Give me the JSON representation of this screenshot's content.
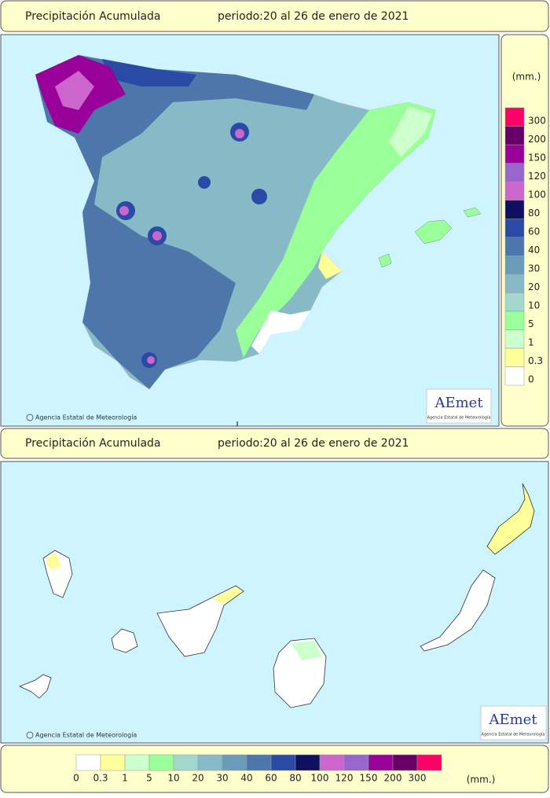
{
  "header": {
    "title": "Precipitación Acumulada",
    "period": "periodo:20 al 26 de enero de 2021"
  },
  "legend": {
    "unit": "(mm.)",
    "items": [
      {
        "label": "0",
        "color": "#ffffff"
      },
      {
        "label": "0.3",
        "color": "#ffff99"
      },
      {
        "label": "1",
        "color": "#ccffcc"
      },
      {
        "label": "5",
        "color": "#99ff99"
      },
      {
        "label": "10",
        "color": "#a3d6cc"
      },
      {
        "label": "20",
        "color": "#88b9c6"
      },
      {
        "label": "30",
        "color": "#6a9bb9"
      },
      {
        "label": "40",
        "color": "#4d76aa"
      },
      {
        "label": "60",
        "color": "#2a4aa5"
      },
      {
        "label": "80",
        "color": "#101060"
      },
      {
        "label": "100",
        "color": "#cc66cc"
      },
      {
        "label": "120",
        "color": "#9966cc"
      },
      {
        "label": "150",
        "color": "#990099"
      },
      {
        "label": "200",
        "color": "#660066"
      },
      {
        "label": "300",
        "color": "#ff0066"
      }
    ]
  },
  "credit": "Agencia Estatal de Meteorología",
  "logo": {
    "name": "AEmet",
    "subtitle": "Agencia Estatal de Meteorología"
  }
}
